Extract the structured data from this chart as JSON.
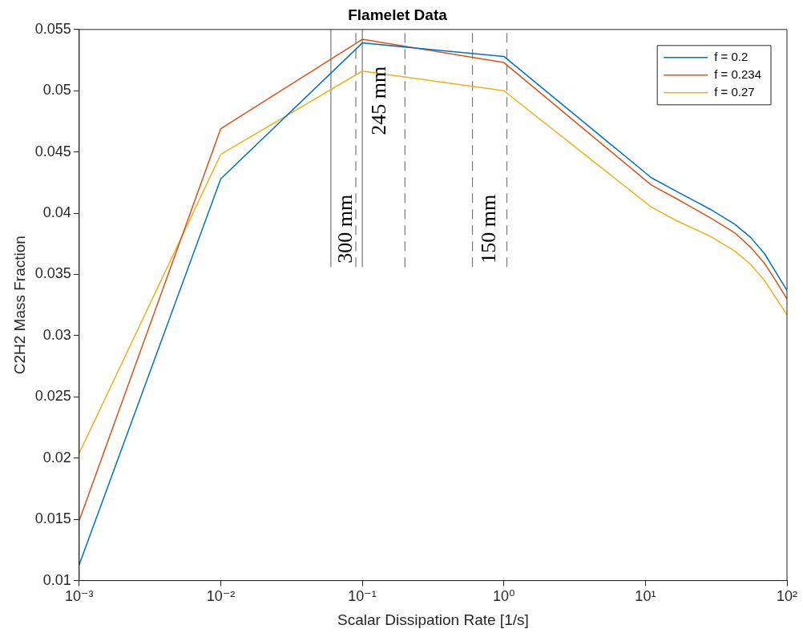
{
  "chart_data": {
    "type": "line",
    "title": "Flamelet Data",
    "xlabel": "Scalar Dissipation Rate [1/s]",
    "ylabel": "C2H2 Mass Fraction",
    "log": "x",
    "grid": false,
    "legend": "top right",
    "line_style": "solid",
    "marker": "none",
    "xlim": [
      0.001,
      100
    ],
    "xticks": [
      {
        "value": 0.001,
        "label": "10⁻³"
      },
      {
        "value": 0.01,
        "label": "10⁻²"
      },
      {
        "value": 0.1,
        "label": "10⁻¹"
      },
      {
        "value": 1,
        "label": "10⁰"
      },
      {
        "value": 10,
        "label": "10¹"
      },
      {
        "value": 100,
        "label": "10²"
      }
    ],
    "ylim": [
      0.01,
      0.055
    ],
    "yticks": [
      0.01,
      0.015,
      0.02,
      0.025,
      0.03,
      0.035,
      0.04,
      0.045,
      0.05,
      0.055
    ],
    "series": [
      {
        "name": "f = 0.2",
        "color": "#0072bd",
        "x": [
          0.001,
          0.01,
          0.1,
          1,
          11,
          16.5,
          28.9,
          42.8,
          55.6,
          69.4,
          82.2,
          100
        ],
        "values": [
          0.0113,
          0.0428,
          0.0539,
          0.0528,
          0.0429,
          0.0418,
          0.0403,
          0.0391,
          0.038,
          0.0367,
          0.0353,
          0.0337
        ]
      },
      {
        "name": "f = 0.234",
        "color": "#d95319",
        "x": [
          0.001,
          0.01,
          0.1,
          1,
          11,
          16.5,
          28.9,
          42.8,
          55.6,
          69.4,
          82.2,
          100
        ],
        "values": [
          0.0149,
          0.0469,
          0.0542,
          0.0523,
          0.0423,
          0.0412,
          0.0396,
          0.0384,
          0.0372,
          0.0359,
          0.0346,
          0.033
        ]
      },
      {
        "name": "f = 0.27",
        "color": "#edb120",
        "x": [
          0.001,
          0.01,
          0.1,
          1,
          11,
          16.5,
          28.9,
          42.8,
          55.6,
          69.4,
          82.2,
          100
        ],
        "values": [
          0.0204,
          0.0448,
          0.0516,
          0.05,
          0.0405,
          0.0394,
          0.0381,
          0.0369,
          0.0358,
          0.0345,
          0.0332,
          0.0317
        ]
      },
      {
        "type": "line",
        "color": "#777777",
        "line_style": "solid",
        "x": [
          0.06,
          0.06
        ],
        "values": [
          0.0356,
          0.055
        ]
      },
      {
        "type": "line",
        "color": "#777777",
        "line_style": "solid",
        "x": [
          0.1,
          0.1
        ],
        "values": [
          0.0356,
          0.055
        ]
      },
      {
        "type": "line",
        "color": "#777777",
        "line_style": "dashed",
        "x": [
          0.09,
          0.09
        ],
        "values": [
          0.0356,
          0.055
        ]
      },
      {
        "type": "line",
        "color": "#777777",
        "line_style": "dashed",
        "x": [
          0.2,
          0.2
        ],
        "values": [
          0.0356,
          0.055
        ]
      },
      {
        "type": "line",
        "color": "#777777",
        "line_style": "dashed",
        "x": [
          0.6,
          0.6
        ],
        "values": [
          0.0356,
          0.055
        ]
      },
      {
        "type": "line",
        "color": "#777777",
        "line_style": "dashed",
        "x": [
          1.05,
          1.05
        ],
        "values": [
          0.0356,
          0.055
        ]
      }
    ],
    "annotations": [
      "300 mm",
      "245 mm",
      "150 mm"
    ]
  }
}
